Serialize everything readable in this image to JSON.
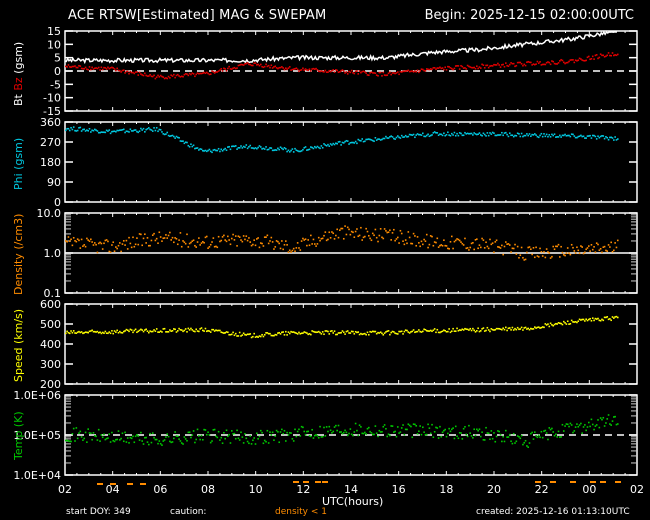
{
  "header": {
    "title": "ACE RTSW[Estimated] MAG & SWEPAM",
    "begin": "Begin: 2025-12-15 02:00:00UTC"
  },
  "footer": {
    "start_doy": "start DOY: 349",
    "caution_label": "caution:",
    "caution_value": "density < 1",
    "xlabel": "UTC(hours)",
    "created": "created: 2025-12-16 01:13:10UTC"
  },
  "colors": {
    "background": "#000000",
    "axes": "#ffffff",
    "bt": "#ffffff",
    "bz": "#e00000",
    "phi": "#00c8e0",
    "density": "#ff8c00",
    "speed": "#ffff00",
    "temp": "#00c800",
    "caution": "#ff8c00"
  },
  "chart_data": [
    {
      "type": "line",
      "title": "Bt Bz (gsm)",
      "ylabel_parts": [
        "Bt",
        "Bz",
        "(gsm)"
      ],
      "yticks": [
        "15",
        "10",
        "5",
        "0",
        "-5",
        "-10",
        "-15"
      ],
      "ylim": [
        -15,
        15
      ],
      "reference_line": 0,
      "x": [
        "02",
        "04",
        "06",
        "08",
        "10",
        "12",
        "14",
        "16",
        "18",
        "20",
        "22",
        "00",
        "02"
      ],
      "series": [
        {
          "name": "Bt",
          "values": [
            4,
            4,
            4,
            4,
            4,
            5,
            5,
            5,
            7,
            8,
            10,
            12,
            15
          ]
        },
        {
          "name": "Bz",
          "values": [
            2,
            1,
            -2,
            -1,
            3,
            1,
            0,
            -1,
            1,
            2,
            3,
            4,
            7
          ]
        }
      ]
    },
    {
      "type": "scatter",
      "title": "Phi (gsm)",
      "ylabel": "Phi (gsm)",
      "yticks": [
        "360",
        "270",
        "180",
        "90",
        "0"
      ],
      "ylim": [
        0,
        360
      ],
      "x": [
        "02",
        "04",
        "06",
        "08",
        "10",
        "12",
        "14",
        "16",
        "18",
        "20",
        "22",
        "00",
        "02"
      ],
      "series": [
        {
          "name": "Phi",
          "values": [
            335,
            320,
            330,
            230,
            255,
            235,
            270,
            290,
            310,
            310,
            305,
            300,
            290
          ]
        }
      ]
    },
    {
      "type": "scatter",
      "title": "Density (/cm3)",
      "ylabel": "Density (/cm3)",
      "yticks": [
        "10.0",
        "1.0",
        "0.1"
      ],
      "yscale": "log",
      "ylim": [
        0.1,
        10
      ],
      "reference_line": 1.0,
      "x": [
        "02",
        "04",
        "06",
        "08",
        "10",
        "12",
        "14",
        "16",
        "18",
        "20",
        "22",
        "00",
        "02"
      ],
      "series": [
        {
          "name": "Density",
          "values": [
            1.8,
            1.5,
            2.5,
            2.0,
            2.3,
            1.4,
            3.5,
            2.8,
            2.0,
            1.8,
            1.0,
            1.2,
            1.5
          ]
        }
      ]
    },
    {
      "type": "scatter",
      "title": "Speed (km/s)",
      "ylabel": "Speed (km/s)",
      "yticks": [
        "600",
        "500",
        "400",
        "300",
        "200"
      ],
      "ylim": [
        200,
        600
      ],
      "x": [
        "02",
        "04",
        "06",
        "08",
        "10",
        "12",
        "14",
        "16",
        "18",
        "20",
        "22",
        "00",
        "02"
      ],
      "series": [
        {
          "name": "Speed",
          "values": [
            460,
            465,
            470,
            475,
            445,
            460,
            460,
            460,
            470,
            475,
            480,
            515,
            535
          ]
        }
      ]
    },
    {
      "type": "scatter",
      "title": "Temp (K)",
      "ylabel": "Temp (K)",
      "yticks": [
        "1.0E+06",
        "1.0E+05",
        "1.0E+04"
      ],
      "yscale": "log",
      "ylim": [
        10000,
        1000000
      ],
      "reference_line": 100000,
      "x": [
        "02",
        "04",
        "06",
        "08",
        "10",
        "12",
        "14",
        "16",
        "18",
        "20",
        "22",
        "00",
        "02"
      ],
      "series": [
        {
          "name": "Temp",
          "values": [
            110000,
            90000,
            80000,
            100000,
            90000,
            110000,
            150000,
            140000,
            130000,
            120000,
            70000,
            150000,
            250000
          ]
        }
      ]
    }
  ],
  "xaxis": {
    "ticks": [
      "02",
      "04",
      "06",
      "08",
      "10",
      "12",
      "14",
      "16",
      "18",
      "20",
      "22",
      "00",
      "02"
    ],
    "label": "UTC(hours)"
  }
}
